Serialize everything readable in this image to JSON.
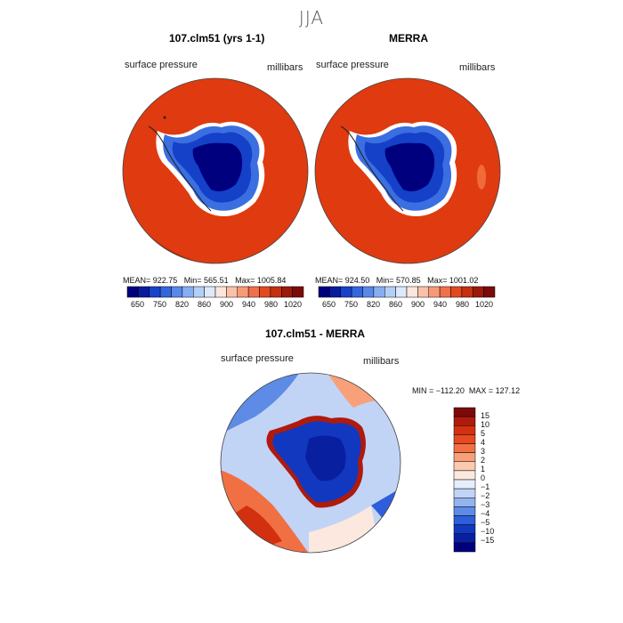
{
  "figure": {
    "season": "JJA"
  },
  "panels": [
    {
      "title": "107.clm51 (yrs 1-1)",
      "variable": "surface pressure",
      "units": "millibars",
      "stats": "MEAN= 922.75   Min= 565.51   Max= 1005.84"
    },
    {
      "title": "MERRA",
      "variable": "surface pressure",
      "units": "millibars",
      "stats": "MEAN= 924.50   Min= 570.85   Max= 1001.02"
    },
    {
      "title": "107.clm51 - MERRA",
      "variable": "surface pressure",
      "units": "millibars",
      "stats": "MIN = −112.20  MAX = 127.12"
    }
  ],
  "colorbar_abs": {
    "colors": [
      "#00007f",
      "#0a1c9e",
      "#1742c9",
      "#3366dd",
      "#5a88ea",
      "#86aef2",
      "#b3cff7",
      "#dde9fb",
      "#fde6dc",
      "#fbc1a8",
      "#f79a78",
      "#f0704c",
      "#e3491f",
      "#c43010",
      "#9c1a0a",
      "#7c0a0a"
    ],
    "labels": [
      "650",
      "750",
      "820",
      "860",
      "900",
      "940",
      "980",
      "1020"
    ]
  },
  "colorbar_diff": {
    "colors": [
      "#7c0a0a",
      "#b01a0c",
      "#d33010",
      "#e8481f",
      "#f07044",
      "#f8a07a",
      "#fbcab0",
      "#fce8de",
      "#e6eefb",
      "#c1d4f6",
      "#92b3ee",
      "#5e8be6",
      "#2e5edc",
      "#1238c0",
      "#0820a0",
      "#00007f"
    ],
    "labels": [
      "15",
      "10",
      "5",
      "4",
      "3",
      "2",
      "1",
      "0",
      "−1",
      "−2",
      "−3",
      "−4",
      "−5",
      "−10",
      "−15"
    ]
  }
}
